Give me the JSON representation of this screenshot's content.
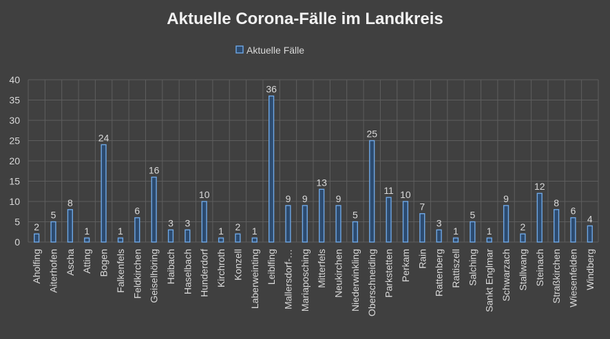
{
  "chart_data": {
    "type": "bar",
    "title": "Aktuelle Corona-Fälle im Landkreis",
    "legend_position": "top",
    "ylim": [
      0,
      40
    ],
    "y_ticks": [
      0,
      5,
      10,
      15,
      20,
      25,
      30,
      35,
      40
    ],
    "grid": true,
    "categories": [
      "Aholfing",
      "Aiterhofen",
      "Ascha",
      "Atting",
      "Bogen",
      "Falkenfels",
      "Feldkirchen",
      "Geiselhöring",
      "Haibach",
      "Haselbach",
      "Hunderdorf",
      "Kirchroth",
      "Konzell",
      "Laberweinting",
      "Leiblfing",
      "Mallersdorf-…",
      "Mariaposching",
      "Mitterfels",
      "Neukirchen",
      "Niederwinkling",
      "Oberschneiding",
      "Parkstetten",
      "Perkam",
      "Rain",
      "Rattenberg",
      "Rattiszell",
      "Salching",
      "Sankt Englmar",
      "Schwarzach",
      "Stallwang",
      "Steinach",
      "Straßkirchen",
      "Wiesenfelden",
      "Windberg"
    ],
    "series": [
      {
        "name": "Aktuelle Fälle",
        "color": "#5b9bd5",
        "values": [
          2,
          5,
          8,
          1,
          24,
          1,
          6,
          16,
          3,
          3,
          10,
          1,
          2,
          1,
          36,
          9,
          9,
          13,
          9,
          5,
          25,
          11,
          10,
          7,
          3,
          1,
          5,
          1,
          9,
          2,
          12,
          8,
          6,
          4
        ]
      }
    ]
  }
}
